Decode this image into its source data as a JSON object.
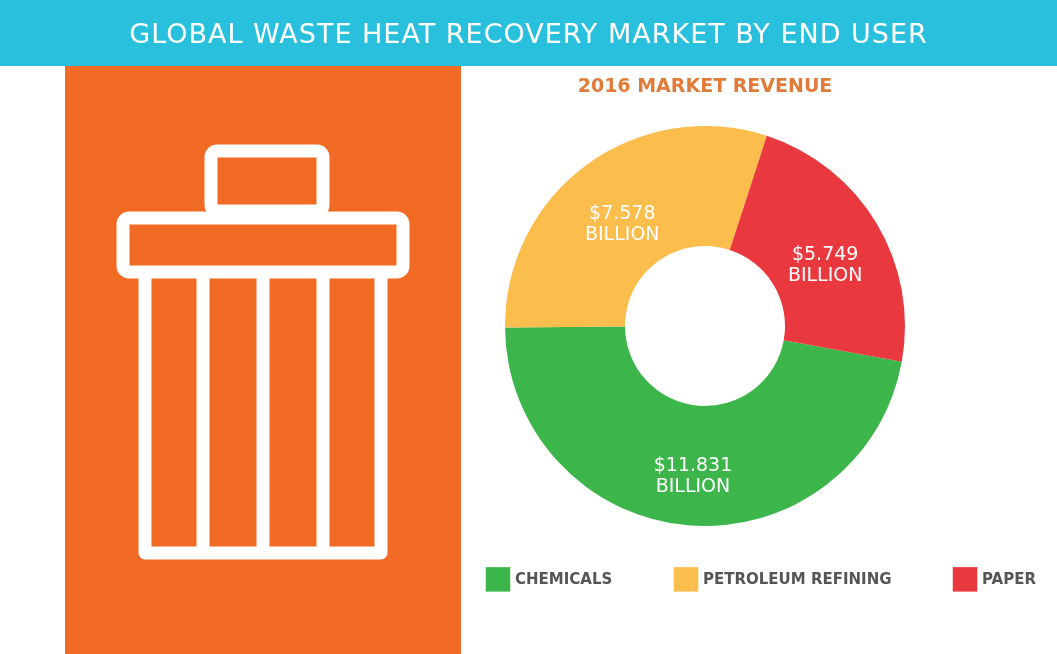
{
  "chart_data": {
    "type": "donut",
    "title": "GLOBAL WASTE HEAT RECOVERY MARKET BY END USER",
    "subtitle": "2016 MARKET REVENUE",
    "categories": [
      "CHEMICALS",
      "PETROLEUM REFINING",
      "PAPER"
    ],
    "values": [
      11.831,
      7.578,
      5.749
    ],
    "colors": [
      "#3cb54a",
      "#fbbd4c",
      "#e9393f"
    ],
    "value_labels": [
      "$11.831 BILLION",
      "$7.578 BILLION",
      "$5.749 BILLION"
    ],
    "legend": "bottom"
  }
}
